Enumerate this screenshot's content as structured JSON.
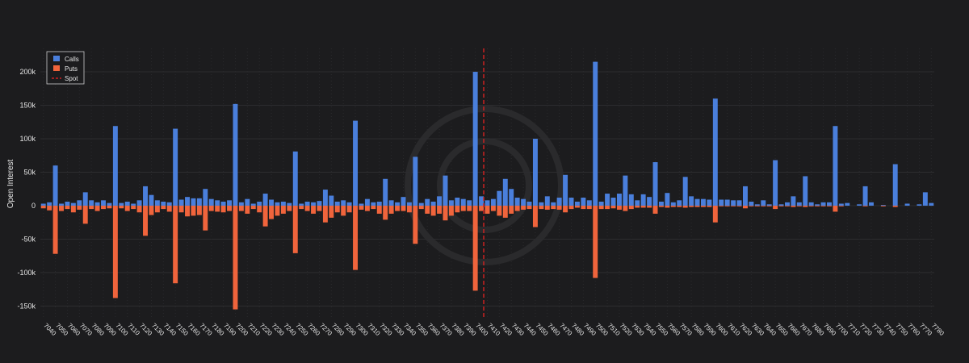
{
  "chart_data": {
    "type": "bar",
    "y_label": "Open Interest",
    "x": [
      7040,
      7045,
      7050,
      7055,
      7060,
      7065,
      7070,
      7075,
      7080,
      7085,
      7090,
      7095,
      7100,
      7105,
      7110,
      7115,
      7120,
      7125,
      7130,
      7135,
      7140,
      7145,
      7150,
      7155,
      7160,
      7165,
      7170,
      7175,
      7180,
      7185,
      7190,
      7195,
      7200,
      7205,
      7210,
      7215,
      7220,
      7225,
      7230,
      7235,
      7240,
      7245,
      7250,
      7255,
      7260,
      7265,
      7270,
      7275,
      7280,
      7285,
      7290,
      7295,
      7300,
      7305,
      7310,
      7315,
      7320,
      7325,
      7330,
      7335,
      7340,
      7345,
      7350,
      7355,
      7360,
      7365,
      7370,
      7375,
      7380,
      7385,
      7390,
      7395,
      7400,
      7405,
      7410,
      7415,
      7420,
      7425,
      7430,
      7435,
      7440,
      7445,
      7450,
      7455,
      7460,
      7465,
      7470,
      7475,
      7480,
      7485,
      7490,
      7495,
      7500,
      7505,
      7510,
      7515,
      7520,
      7525,
      7530,
      7535,
      7540,
      7545,
      7550,
      7555,
      7560,
      7565,
      7570,
      7575,
      7580,
      7585,
      7590,
      7595,
      7600,
      7605,
      7610,
      7615,
      7620,
      7625,
      7630,
      7635,
      7640,
      7645,
      7650,
      7655,
      7660,
      7665,
      7670,
      7675,
      7680,
      7685,
      7690,
      7695,
      7700,
      7705,
      7710,
      7715,
      7720,
      7725,
      7730,
      7735,
      7740,
      7745,
      7750,
      7755,
      7760,
      7765,
      7770,
      7775,
      7780
    ],
    "series": [
      {
        "name": "Calls",
        "color": "#4a7fdc",
        "values": [
          3000,
          5000,
          60000,
          3000,
          6000,
          4000,
          8000,
          20000,
          8000,
          5000,
          8000,
          4000,
          119000,
          4000,
          6000,
          3000,
          8000,
          29000,
          16000,
          8000,
          6000,
          5000,
          115000,
          9000,
          13000,
          11000,
          11000,
          25000,
          10000,
          8000,
          6000,
          8000,
          152000,
          5000,
          10000,
          3000,
          6000,
          18000,
          9000,
          5000,
          6000,
          4000,
          81000,
          3000,
          6000,
          5000,
          7000,
          24000,
          15000,
          6000,
          8000,
          5000,
          127000,
          3000,
          10000,
          5000,
          6000,
          40000,
          8000,
          5000,
          13000,
          5000,
          73000,
          4000,
          10000,
          6000,
          14000,
          45000,
          8000,
          12000,
          10000,
          8000,
          200000,
          14000,
          8000,
          10000,
          22000,
          40000,
          25000,
          12000,
          10000,
          6000,
          100000,
          5000,
          14000,
          5000,
          12000,
          46000,
          12000,
          6000,
          12000,
          8000,
          215000,
          6000,
          18000,
          12000,
          18000,
          45000,
          17000,
          8000,
          17000,
          13000,
          65000,
          6000,
          19000,
          5000,
          8000,
          43000,
          14000,
          10000,
          10000,
          9000,
          160000,
          9000,
          9000,
          8000,
          8000,
          29000,
          6000,
          2000,
          8000,
          2000,
          68000,
          2000,
          5000,
          14000,
          5000,
          44000,
          5000,
          2000,
          5000,
          5000,
          119000,
          3000,
          4000,
          0,
          2000,
          29000,
          5000,
          0,
          1000,
          0,
          62000,
          0,
          3000,
          0,
          2000,
          20000,
          4000
        ]
      },
      {
        "name": "Puts",
        "color": "#f0643c",
        "values": [
          -4000,
          -7000,
          -72000,
          -8000,
          -5000,
          -10000,
          -6000,
          -27000,
          -5000,
          -8000,
          -5000,
          -4000,
          -138000,
          -4000,
          -8000,
          -5000,
          -10000,
          -45000,
          -14000,
          -10000,
          -5000,
          -9000,
          -116000,
          -10000,
          -16000,
          -15000,
          -14000,
          -37000,
          -8000,
          -9000,
          -10000,
          -8000,
          -155000,
          -8000,
          -12000,
          -5000,
          -10000,
          -31000,
          -20000,
          -15000,
          -12000,
          -8000,
          -71000,
          -5000,
          -8000,
          -12000,
          -8000,
          -25000,
          -18000,
          -10000,
          -15000,
          -10000,
          -96000,
          -6000,
          -8000,
          -5000,
          -12000,
          -21000,
          -12000,
          -8000,
          -8000,
          -10000,
          -57000,
          -5000,
          -12000,
          -15000,
          -12000,
          -22000,
          -15000,
          -10000,
          -8000,
          -8000,
          -127000,
          -8000,
          -12000,
          -8000,
          -15000,
          -18000,
          -12000,
          -8000,
          -6000,
          -5000,
          -32000,
          -5000,
          -6000,
          -5000,
          -6000,
          -10000,
          -5000,
          -3000,
          -5000,
          -5000,
          -108000,
          -5000,
          -5000,
          -4000,
          -6000,
          -8000,
          -5000,
          -3000,
          -3000,
          -3000,
          -12000,
          -2000,
          -3000,
          -2000,
          -2000,
          -3000,
          -2000,
          -2000,
          -2000,
          -2000,
          -25000,
          -1000,
          -1000,
          -1000,
          -1000,
          -4000,
          -1000,
          -1000,
          -1000,
          -1000,
          -5000,
          -1000,
          -1000,
          -2000,
          -1000,
          -2000,
          -1000,
          -1000,
          -1000,
          -1000,
          -9000,
          -1000,
          0,
          0,
          0,
          -1000,
          0,
          0,
          -1000,
          0,
          -2000,
          0,
          0,
          0,
          0,
          0,
          0
        ]
      }
    ],
    "spot": {
      "name": "Spot",
      "value": 7407,
      "color": "#cc2222"
    },
    "xlim": [
      7037.5,
      7782.5
    ],
    "xticks": [
      7040,
      7050,
      7060,
      7070,
      7080,
      7090,
      7100,
      7110,
      7120,
      7130,
      7140,
      7150,
      7160,
      7170,
      7180,
      7190,
      7200,
      7210,
      7220,
      7230,
      7240,
      7250,
      7260,
      7270,
      7280,
      7290,
      7300,
      7310,
      7320,
      7330,
      7340,
      7350,
      7360,
      7370,
      7380,
      7390,
      7400,
      7410,
      7420,
      7430,
      7440,
      7450,
      7460,
      7470,
      7480,
      7490,
      7500,
      7510,
      7520,
      7530,
      7540,
      7550,
      7560,
      7570,
      7580,
      7590,
      7600,
      7610,
      7620,
      7630,
      7640,
      7650,
      7660,
      7670,
      7680,
      7690,
      7700,
      7710,
      7720,
      7730,
      7740,
      7750,
      7760,
      7770,
      7780
    ],
    "ylim": [
      -170000,
      235000
    ],
    "yticks": [
      {
        "value": -150000,
        "label": "-150k"
      },
      {
        "value": -100000,
        "label": "-100k"
      },
      {
        "value": -50000,
        "label": "-50k"
      },
      0,
      {
        "value": 50000,
        "label": "50k"
      },
      {
        "value": 100000,
        "label": "100k"
      },
      {
        "value": 150000,
        "label": "150k"
      },
      {
        "value": 200000,
        "label": "200k"
      }
    ],
    "grid": true,
    "legend": "top-left"
  }
}
